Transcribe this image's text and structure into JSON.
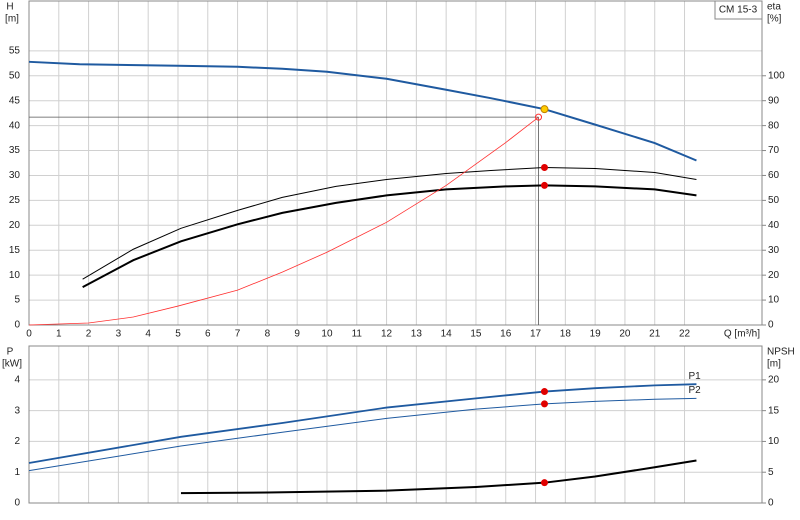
{
  "chart_data": [
    {
      "type": "line",
      "title": "CM 15-3",
      "y_label": "H",
      "y_unit": "[m]",
      "y2_label": "eta",
      "y2_unit": "[%]",
      "x_label": "Q [m³/h]",
      "xlim": [
        0,
        24.6
      ],
      "xticks": [
        0,
        1,
        2,
        3,
        4,
        5,
        6,
        7,
        8,
        9,
        10,
        11,
        12,
        13,
        14,
        15,
        16,
        17,
        18,
        19,
        20,
        21,
        22
      ],
      "ylim": [
        0,
        65
      ],
      "yticks": [
        0,
        5,
        10,
        15,
        20,
        25,
        30,
        35,
        40,
        45,
        50,
        55
      ],
      "y2lim": [
        0,
        130
      ],
      "y2ticks": [
        0,
        10,
        20,
        30,
        40,
        50,
        60,
        70,
        80,
        90,
        100
      ],
      "grid": true,
      "x_tick_labels": true,
      "series": [
        {
          "color": "#1f5aa0",
          "width": 2,
          "x": [
            0,
            1.7,
            5,
            7,
            8.5,
            10,
            12,
            14,
            15.5,
            17.3,
            19,
            21,
            22.4
          ],
          "values": [
            52.8,
            52.3,
            52.0,
            51.8,
            51.4,
            50.8,
            49.4,
            47.2,
            45.5,
            43.3,
            40.2,
            36.5,
            33
          ]
        },
        {
          "color": "#000000",
          "width": 2,
          "axis": "y2",
          "x": [
            1.8,
            3.5,
            5.1,
            7,
            8.5,
            10.3,
            12,
            14,
            16,
            17.3,
            19,
            21,
            22.4
          ],
          "values": [
            15.2,
            26,
            33.6,
            40.4,
            45,
            49,
            52,
            54.4,
            55.6,
            56,
            55.6,
            54.4,
            52
          ]
        },
        {
          "color": "#000000",
          "width": 1,
          "axis": "y2",
          "x": [
            1.8,
            3.5,
            5.1,
            7,
            8.5,
            10.3,
            12,
            14,
            15.5,
            17.3,
            19,
            21,
            22.4
          ],
          "values": [
            18.4,
            30.4,
            38.8,
            46,
            51.2,
            55.6,
            58.4,
            60.8,
            62,
            63.2,
            62.8,
            61.2,
            58.4
          ]
        },
        {
          "color": "#ff3030",
          "width": 0.8,
          "x": [
            0,
            2,
            3.5,
            5,
            7,
            8.5,
            10,
            12,
            14,
            16,
            17.1
          ],
          "values": [
            0,
            0.4,
            1.6,
            3.8,
            7,
            10.6,
            14.6,
            20.6,
            28,
            36.6,
            41.7
          ]
        }
      ],
      "duty_point": {
        "x": 17.1,
        "y": 41.7
      },
      "points": [
        {
          "x": 17.3,
          "y": 43.3,
          "color": "#ffcc00"
        },
        {
          "x": 17.3,
          "y": 63.2,
          "color": "#e00000",
          "axis": "y2"
        },
        {
          "x": 17.3,
          "y": 56,
          "color": "#e00000",
          "axis": "y2"
        }
      ]
    },
    {
      "type": "line",
      "y_label": "P",
      "y_unit": "[kW]",
      "y2_label": "NPSH",
      "y2_unit": "[m]",
      "xlim": [
        0,
        24.6
      ],
      "xticks": [
        0,
        1,
        2,
        3,
        4,
        5,
        6,
        7,
        8,
        9,
        10,
        11,
        12,
        13,
        14,
        15,
        16,
        17,
        18,
        19,
        20,
        21,
        22
      ],
      "ylim": [
        0,
        5.1
      ],
      "yticks": [
        0,
        1,
        2,
        3,
        4
      ],
      "y2lim": [
        0,
        25.5
      ],
      "y2ticks": [
        0,
        5,
        10,
        15,
        20
      ],
      "grid": true,
      "x_tick_labels": false,
      "series": [
        {
          "name": "P1",
          "color": "#1f5aa0",
          "width": 1.8,
          "x": [
            0,
            5.1,
            8.5,
            12,
            15,
            17.3,
            19,
            21,
            22.4
          ],
          "values": [
            1.3,
            2.15,
            2.6,
            3.1,
            3.4,
            3.62,
            3.73,
            3.82,
            3.86
          ]
        },
        {
          "name": "P2",
          "color": "#1f5aa0",
          "width": 1,
          "x": [
            0,
            5.1,
            8.5,
            12,
            15,
            17.3,
            19,
            21,
            22.4
          ],
          "values": [
            1.05,
            1.85,
            2.3,
            2.75,
            3.05,
            3.22,
            3.3,
            3.37,
            3.4
          ]
        },
        {
          "color": "#000000",
          "width": 2,
          "axis": "y2",
          "x": [
            5.1,
            8,
            12,
            15,
            17.3,
            19,
            21,
            22.4
          ],
          "values": [
            1.6,
            1.7,
            2.0,
            2.6,
            3.3,
            4.3,
            5.8,
            6.9
          ]
        }
      ],
      "points": [
        {
          "x": 17.3,
          "y": 3.62,
          "color": "#e00000"
        },
        {
          "x": 17.3,
          "y": 3.22,
          "color": "#e00000"
        },
        {
          "x": 17.3,
          "y": 3.3,
          "color": "#e00000",
          "axis": "y2"
        }
      ]
    }
  ]
}
